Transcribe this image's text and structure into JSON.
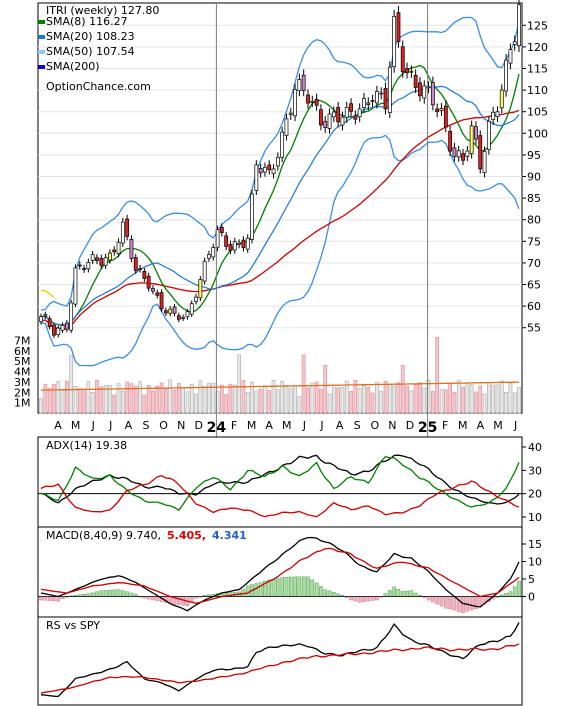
{
  "chart_data": [
    {
      "type": "candlestick",
      "title": "ITRI (weekly) 127.80",
      "legend": [
        {
          "name": "SMA(8) 116.27",
          "color": "#008000"
        },
        {
          "name": "SMA(20) 108.23",
          "color": "#1f77d0"
        },
        {
          "name": "SMA(50) 107.54",
          "color": "#87cefa"
        },
        {
          "name": "SMA(200)",
          "color": "#0000cc"
        }
      ],
      "watermark": "OptionChance.com",
      "yticks": [
        55,
        60,
        65,
        70,
        75,
        80,
        85,
        90,
        95,
        100,
        105,
        110,
        115,
        120,
        125
      ],
      "ylim": [
        51,
        129
      ],
      "volume_ticks": [
        "7M",
        "6M",
        "5M",
        "4M",
        "3M",
        "2M",
        "1M"
      ],
      "xticks": [
        "A",
        "M",
        "J",
        "J",
        "A",
        "S",
        "O",
        "N",
        "D",
        "24",
        "F",
        "M",
        "A",
        "M",
        "J",
        "J",
        "A",
        "S",
        "O",
        "N",
        "D",
        "25",
        "F",
        "M",
        "A",
        "M",
        "J"
      ],
      "close_anchors": [
        [
          0,
          57
        ],
        [
          3,
          54
        ],
        [
          6,
          56
        ],
        [
          8,
          68
        ],
        [
          12,
          70
        ],
        [
          16,
          72
        ],
        [
          19,
          78
        ],
        [
          22,
          68
        ],
        [
          25,
          66
        ],
        [
          28,
          60
        ],
        [
          31,
          57
        ],
        [
          34,
          58
        ],
        [
          36,
          64
        ],
        [
          39,
          72
        ],
        [
          41,
          76
        ],
        [
          44,
          74
        ],
        [
          46,
          75
        ],
        [
          48,
          76
        ],
        [
          50,
          92
        ],
        [
          53,
          90
        ],
        [
          56,
          100
        ],
        [
          59,
          110
        ],
        [
          62,
          108
        ],
        [
          65,
          104
        ],
        [
          68,
          104
        ],
        [
          71,
          103
        ],
        [
          74,
          106
        ],
        [
          77,
          110
        ],
        [
          80,
          106
        ],
        [
          82,
          124
        ],
        [
          84,
          117
        ],
        [
          87,
          112
        ],
        [
          90,
          108
        ],
        [
          93,
          104
        ],
        [
          96,
          96
        ],
        [
          98,
          94
        ],
        [
          100,
          100
        ],
        [
          102,
          92
        ],
        [
          104,
          102
        ],
        [
          106,
          108
        ],
        [
          108,
          115
        ],
        [
          110,
          122
        ],
        [
          111,
          127.8
        ]
      ]
    },
    {
      "type": "line",
      "title": "ADX(14) 19.38",
      "yticks": [
        10,
        20,
        30,
        40
      ],
      "ylim": [
        7,
        43
      ],
      "series": [
        {
          "name": "ADX",
          "color": "#000000",
          "anchors": [
            [
              0,
              20
            ],
            [
              4,
              16
            ],
            [
              8,
              22
            ],
            [
              12,
              25
            ],
            [
              16,
              28
            ],
            [
              20,
              26
            ],
            [
              24,
              23
            ],
            [
              28,
              23
            ],
            [
              32,
              20
            ],
            [
              36,
              20
            ],
            [
              40,
              24
            ],
            [
              44,
              25
            ],
            [
              48,
              25
            ],
            [
              52,
              28
            ],
            [
              56,
              32
            ],
            [
              60,
              35
            ],
            [
              64,
              36
            ],
            [
              68,
              32
            ],
            [
              72,
              28
            ],
            [
              76,
              30
            ],
            [
              80,
              34
            ],
            [
              84,
              37
            ],
            [
              88,
              33
            ],
            [
              92,
              27
            ],
            [
              96,
              22
            ],
            [
              100,
              18
            ],
            [
              104,
              16
            ],
            [
              108,
              16
            ],
            [
              111,
              19.4
            ]
          ]
        },
        {
          "name": "+DI",
          "color": "#008000",
          "anchors": [
            [
              0,
              20
            ],
            [
              4,
              17
            ],
            [
              8,
              31
            ],
            [
              12,
              26
            ],
            [
              16,
              28
            ],
            [
              20,
              21
            ],
            [
              24,
              17
            ],
            [
              28,
              16
            ],
            [
              32,
              13
            ],
            [
              36,
              23
            ],
            [
              40,
              27
            ],
            [
              44,
              22
            ],
            [
              48,
              30
            ],
            [
              52,
              27
            ],
            [
              56,
              32
            ],
            [
              60,
              27
            ],
            [
              64,
              33
            ],
            [
              68,
              22
            ],
            [
              72,
              27
            ],
            [
              76,
              25
            ],
            [
              80,
              36
            ],
            [
              84,
              33
            ],
            [
              88,
              27
            ],
            [
              92,
              22
            ],
            [
              96,
              18
            ],
            [
              100,
              14
            ],
            [
              104,
              16
            ],
            [
              108,
              22
            ],
            [
              111,
              33
            ]
          ]
        },
        {
          "name": "-DI",
          "color": "#cc0000",
          "anchors": [
            [
              0,
              22
            ],
            [
              4,
              24
            ],
            [
              8,
              14
            ],
            [
              12,
              12
            ],
            [
              16,
              13
            ],
            [
              20,
              21
            ],
            [
              24,
              24
            ],
            [
              28,
              28
            ],
            [
              32,
              24
            ],
            [
              36,
              16
            ],
            [
              40,
              12
            ],
            [
              44,
              14
            ],
            [
              48,
              13
            ],
            [
              52,
              10
            ],
            [
              56,
              12
            ],
            [
              60,
              12
            ],
            [
              64,
              10
            ],
            [
              68,
              16
            ],
            [
              72,
              13
            ],
            [
              76,
              15
            ],
            [
              80,
              11
            ],
            [
              84,
              12
            ],
            [
              88,
              15
            ],
            [
              92,
              20
            ],
            [
              96,
              23
            ],
            [
              100,
              25
            ],
            [
              104,
              21
            ],
            [
              108,
              17
            ],
            [
              111,
              14
            ]
          ]
        }
      ]
    },
    {
      "type": "line",
      "title": "MACD(8,40,9) 9.740,",
      "signal_label": "5.405,",
      "hist_label": "4.341",
      "yticks": [
        0,
        5,
        10,
        15
      ],
      "ylim": [
        -5,
        19
      ],
      "series": [
        {
          "name": "MACD",
          "color": "#000000",
          "anchors": [
            [
              0,
              1
            ],
            [
              4,
              0
            ],
            [
              8,
              2
            ],
            [
              14,
              5
            ],
            [
              18,
              6
            ],
            [
              22,
              4
            ],
            [
              26,
              1
            ],
            [
              30,
              -2
            ],
            [
              34,
              -4
            ],
            [
              38,
              -1
            ],
            [
              42,
              1
            ],
            [
              46,
              2
            ],
            [
              50,
              6
            ],
            [
              54,
              10
            ],
            [
              58,
              14
            ],
            [
              62,
              17
            ],
            [
              66,
              16
            ],
            [
              70,
              13
            ],
            [
              74,
              9
            ],
            [
              78,
              7
            ],
            [
              82,
              12
            ],
            [
              86,
              11
            ],
            [
              90,
              7
            ],
            [
              94,
              2
            ],
            [
              98,
              -2
            ],
            [
              102,
              -3
            ],
            [
              106,
              1
            ],
            [
              109,
              5
            ],
            [
              111,
              9.74
            ]
          ]
        },
        {
          "name": "Signal",
          "color": "#cc0000",
          "anchors": [
            [
              0,
              2
            ],
            [
              6,
              1
            ],
            [
              12,
              3
            ],
            [
              18,
              4
            ],
            [
              24,
              3
            ],
            [
              30,
              0
            ],
            [
              36,
              -2
            ],
            [
              42,
              0
            ],
            [
              48,
              1
            ],
            [
              54,
              5
            ],
            [
              60,
              10
            ],
            [
              66,
              14
            ],
            [
              72,
              12
            ],
            [
              78,
              8
            ],
            [
              84,
              10
            ],
            [
              90,
              8
            ],
            [
              96,
              4
            ],
            [
              102,
              0
            ],
            [
              106,
              1
            ],
            [
              111,
              5.405
            ]
          ]
        }
      ]
    },
    {
      "type": "line",
      "title": "RS vs SPY",
      "series": [
        {
          "name": "RS",
          "color": "#000000",
          "anchors": [
            [
              0,
              0.1
            ],
            [
              4,
              0.08
            ],
            [
              8,
              0.3
            ],
            [
              12,
              0.35
            ],
            [
              16,
              0.42
            ],
            [
              20,
              0.5
            ],
            [
              24,
              0.3
            ],
            [
              28,
              0.25
            ],
            [
              32,
              0.15
            ],
            [
              36,
              0.3
            ],
            [
              40,
              0.4
            ],
            [
              44,
              0.42
            ],
            [
              48,
              0.45
            ],
            [
              50,
              0.62
            ],
            [
              54,
              0.7
            ],
            [
              58,
              0.72
            ],
            [
              62,
              0.7
            ],
            [
              66,
              0.62
            ],
            [
              70,
              0.58
            ],
            [
              74,
              0.65
            ],
            [
              78,
              0.68
            ],
            [
              82,
              0.95
            ],
            [
              86,
              0.78
            ],
            [
              90,
              0.7
            ],
            [
              94,
              0.62
            ],
            [
              98,
              0.55
            ],
            [
              102,
              0.72
            ],
            [
              106,
              0.78
            ],
            [
              109,
              0.82
            ],
            [
              111,
              0.98
            ]
          ]
        },
        {
          "name": "RS avg",
          "color": "#cc0000",
          "anchors": [
            [
              0,
              0.12
            ],
            [
              8,
              0.2
            ],
            [
              16,
              0.32
            ],
            [
              24,
              0.32
            ],
            [
              32,
              0.25
            ],
            [
              40,
              0.3
            ],
            [
              48,
              0.38
            ],
            [
              56,
              0.5
            ],
            [
              64,
              0.58
            ],
            [
              72,
              0.6
            ],
            [
              80,
              0.64
            ],
            [
              88,
              0.68
            ],
            [
              96,
              0.66
            ],
            [
              104,
              0.66
            ],
            [
              111,
              0.72
            ]
          ]
        }
      ]
    }
  ]
}
